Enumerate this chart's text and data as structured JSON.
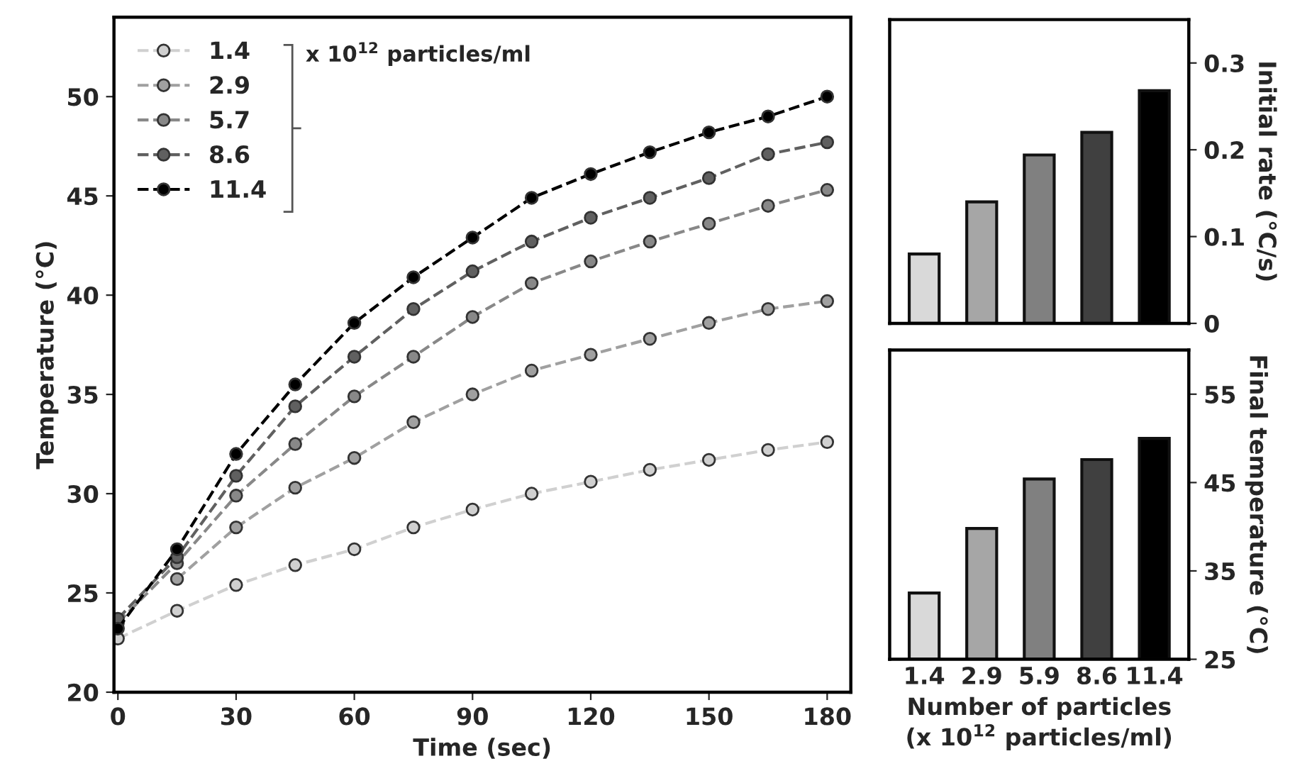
{
  "chart_data": [
    {
      "type": "line",
      "xlabel": "Time (sec)",
      "ylabel": "Temperature (°C)",
      "x": [
        0,
        15,
        30,
        45,
        60,
        75,
        90,
        105,
        120,
        135,
        150,
        165,
        180
      ],
      "xlim": [
        -1,
        186
      ],
      "xticks": [
        0,
        30,
        60,
        90,
        120,
        150,
        180
      ],
      "ylim": [
        20,
        54
      ],
      "yticks": [
        20,
        25,
        30,
        35,
        40,
        45,
        50
      ],
      "marker": "circle",
      "line_style": "dashed",
      "grid": false,
      "legend": "top left",
      "annotations": [
        "x 10$^{12}$ particles/ml"
      ],
      "series": [
        {
          "name": "1.4",
          "color": "#d0d0d0",
          "values": [
            22.7,
            24.1,
            25.4,
            26.4,
            27.2,
            28.3,
            29.2,
            30.0,
            30.6,
            31.2,
            31.7,
            32.2,
            32.6
          ]
        },
        {
          "name": "2.9",
          "color": "#a0a0a0",
          "values": [
            null,
            25.7,
            28.3,
            30.3,
            31.8,
            33.6,
            35.0,
            36.2,
            37.0,
            37.8,
            38.6,
            39.3,
            39.7
          ]
        },
        {
          "name": "5.7",
          "color": "#888888",
          "values": [
            23.5,
            26.5,
            29.9,
            32.5,
            34.9,
            36.9,
            38.9,
            40.6,
            41.7,
            42.7,
            43.6,
            44.5,
            45.3
          ]
        },
        {
          "name": "8.6",
          "color": "#606060",
          "values": [
            23.7,
            26.8,
            30.9,
            34.4,
            36.9,
            39.3,
            41.2,
            42.7,
            43.9,
            44.9,
            45.9,
            47.1,
            47.7
          ]
        },
        {
          "name": "11.4",
          "color": "#000000",
          "values": [
            23.2,
            27.2,
            32.0,
            35.5,
            38.6,
            40.9,
            42.9,
            44.9,
            46.1,
            47.2,
            48.2,
            49.0,
            50.0
          ]
        }
      ]
    },
    {
      "type": "bar",
      "ylabel": "Initial rate (°C/s)",
      "categories": [
        "1.4",
        "2.9",
        "5.9",
        "8.6",
        "11.4"
      ],
      "values": [
        0.08,
        0.14,
        0.194,
        0.22,
        0.268
      ],
      "colors": [
        "#d9d9d9",
        "#a6a6a6",
        "#808080",
        "#404040",
        "#000000"
      ],
      "ylim": [
        0,
        0.35
      ],
      "yticks": [
        0,
        0.1,
        0.2,
        0.3
      ],
      "tick_labels": "y",
      "grid": false
    },
    {
      "type": "bar",
      "ylabel": "Final temperature (°C)",
      "xlabel": "Number of particles\n(x 10$^{12}$ particles/ml)",
      "categories": [
        "1.4",
        "2.9",
        "5.9",
        "8.6",
        "11.4"
      ],
      "values": [
        32.5,
        39.8,
        45.4,
        47.6,
        50.0
      ],
      "colors": [
        "#d9d9d9",
        "#a6a6a6",
        "#808080",
        "#404040",
        "#000000"
      ],
      "ylim": [
        25,
        60
      ],
      "yticks": [
        25,
        35,
        45,
        55
      ],
      "grid": false
    }
  ]
}
